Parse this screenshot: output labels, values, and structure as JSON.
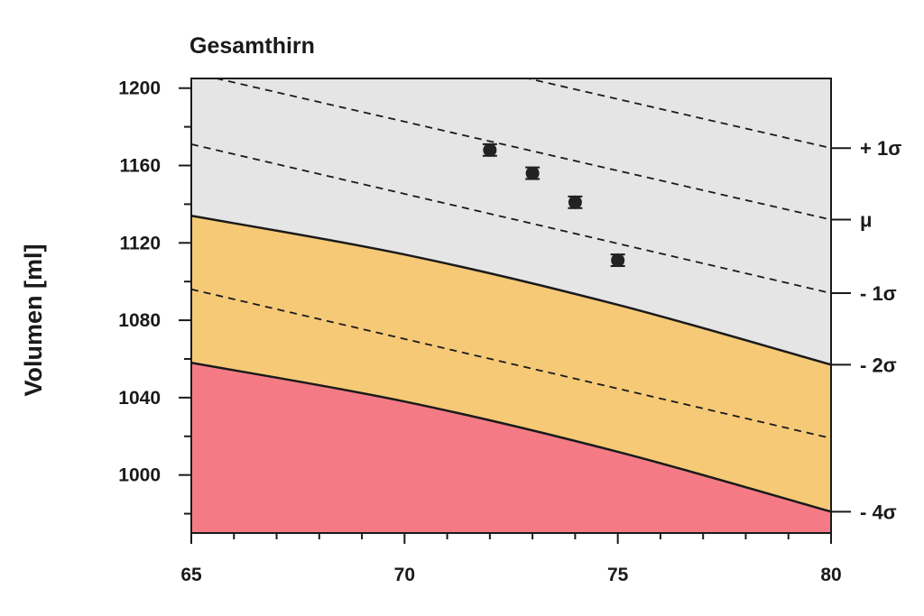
{
  "chart_data": {
    "type": "line",
    "title": "Gesamthirn",
    "xlabel": "",
    "ylabel": "Volumen [ml]",
    "xlim": [
      65,
      80
    ],
    "ylim": [
      970,
      1205
    ],
    "x_ticks": [
      65,
      70,
      75,
      80
    ],
    "y_ticks": [
      1000,
      1040,
      1080,
      1120,
      1160,
      1200
    ],
    "colors": {
      "normal_zone": "#e6e5e5",
      "warning_zone": "#f6c977",
      "danger_zone": "#f47b85",
      "curve": "#1a1a1a"
    },
    "bands": [
      {
        "label": "+ 1σ",
        "style": "dashed",
        "x": [
          65,
          80
        ],
        "y": [
          1245,
          1169
        ]
      },
      {
        "label": "μ",
        "style": "dashed",
        "x": [
          65,
          80
        ],
        "y": [
          1208,
          1132
        ]
      },
      {
        "label": "- 1σ",
        "style": "dashed",
        "x": [
          65,
          80
        ],
        "y": [
          1171,
          1094
        ]
      },
      {
        "label": "- 2σ",
        "style": "solid",
        "x": [
          65,
          70,
          75,
          80
        ],
        "y": [
          1134,
          1114,
          1088,
          1057
        ]
      },
      {
        "label": "",
        "style": "dashed",
        "x": [
          65,
          80
        ],
        "y": [
          1096,
          1019
        ]
      },
      {
        "label": "- 4σ",
        "style": "solid",
        "x": [
          65,
          70,
          75,
          80
        ],
        "y": [
          1058,
          1038,
          1012,
          981
        ]
      }
    ],
    "points": [
      {
        "x": 72,
        "y": 1168,
        "err": 3
      },
      {
        "x": 73,
        "y": 1156,
        "err": 3
      },
      {
        "x": 74,
        "y": 1141,
        "err": 3
      },
      {
        "x": 75,
        "y": 1111,
        "err": 3
      }
    ]
  }
}
